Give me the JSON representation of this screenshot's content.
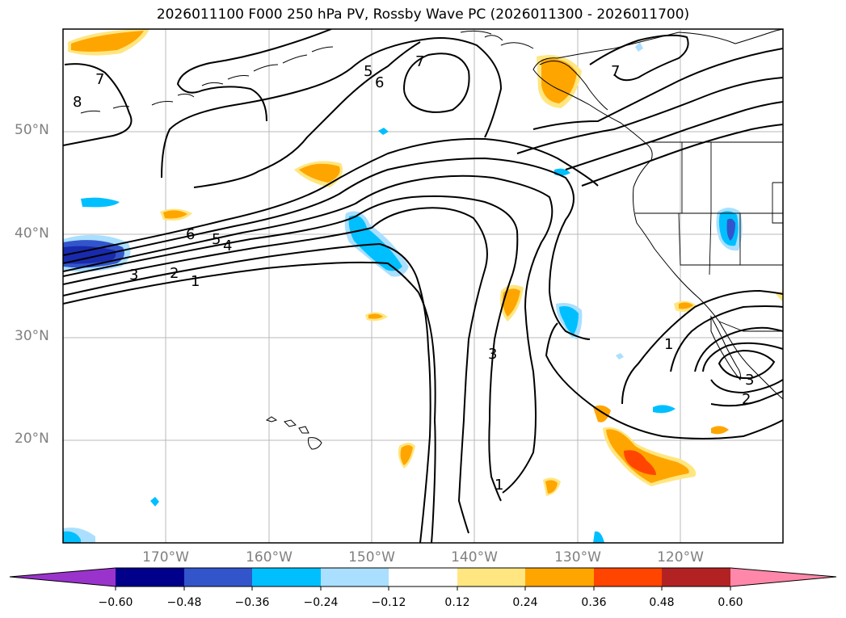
{
  "title": "2026011100 F000 250 hPa PV, Rossby Wave PC (2026011300 - 2026011700)",
  "lat_labels": [
    "50°N",
    "40°N",
    "30°N",
    "20°N"
  ],
  "lon_labels": [
    "170°W",
    "160°W",
    "150°W",
    "140°W",
    "130°W",
    "120°W"
  ],
  "contour_labels": [
    "7",
    "8",
    "5",
    "6",
    "7",
    "6",
    "5",
    "4",
    "3",
    "2",
    "1",
    "3",
    "1",
    "1",
    "3",
    "2",
    "7"
  ],
  "colorbar": {
    "ticks": [
      "−0.60",
      "−0.48",
      "−0.36",
      "−0.24",
      "−0.12",
      "0.12",
      "0.24",
      "0.36",
      "0.48",
      "0.60"
    ],
    "colors": [
      "#9a33cc",
      "#00008b",
      "#3355cc",
      "#00bfff",
      "#aadfff",
      "#ffffff",
      "#ffe680",
      "#ffa500",
      "#ff4500",
      "#b22222",
      "#ff88aa"
    ]
  }
}
